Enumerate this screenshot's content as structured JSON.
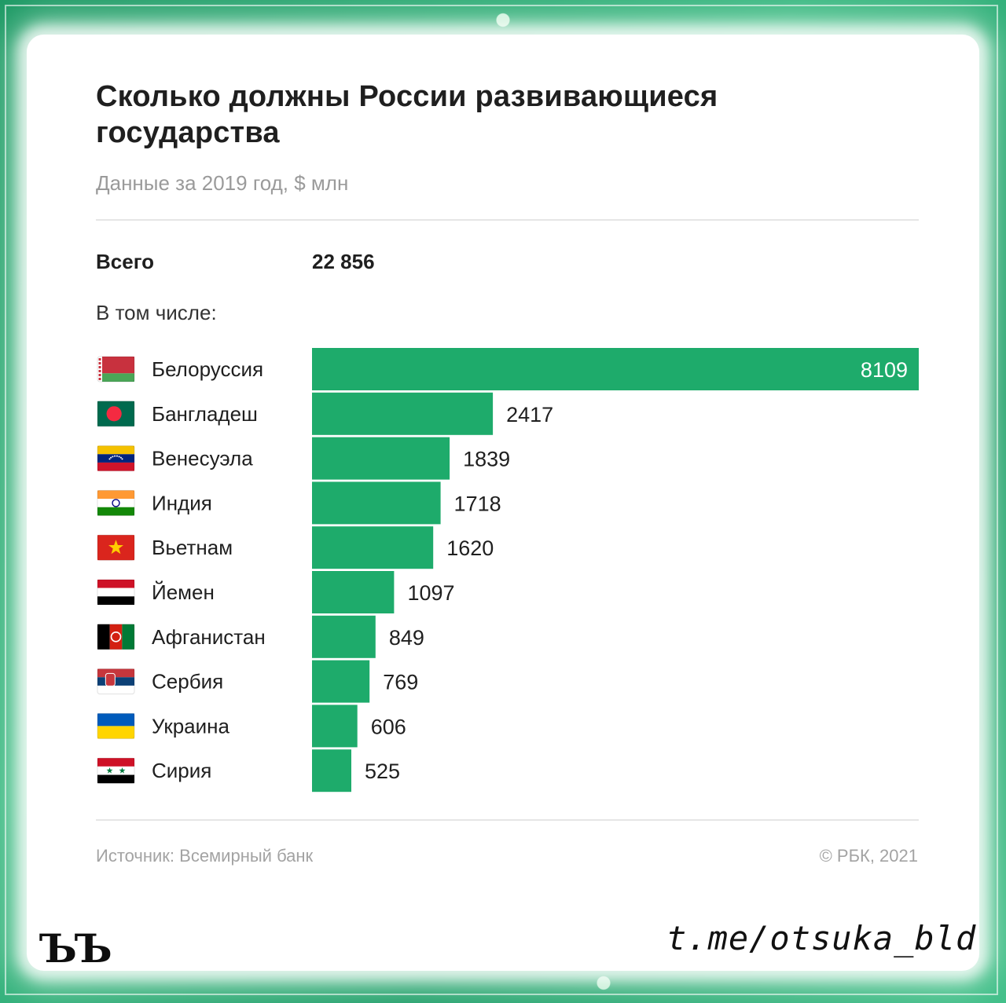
{
  "title": "Сколько должны России развивающиеся государства",
  "subtitle": "Данные за 2019 год, $ млн",
  "total": {
    "label": "Всего",
    "value": "22 856"
  },
  "including_label": "В том числе:",
  "footer": {
    "source": "Источник: Всемирный банк",
    "copyright": "© РБК, 2021"
  },
  "watermark": {
    "logo": "ЪЪ",
    "handle": "t.me/otsuka_bld"
  },
  "colors": {
    "bar": "#1eab6b",
    "bar_label_inside": "#ffffff",
    "text": "#1f1f1f",
    "muted": "#9a9a9a"
  },
  "chart_data": {
    "type": "bar",
    "orientation": "horizontal",
    "categories": [
      "Белоруссия",
      "Бангладеш",
      "Венесуэла",
      "Индия",
      "Вьетнам",
      "Йемен",
      "Афганистан",
      "Сербия",
      "Украина",
      "Сирия"
    ],
    "values": [
      8109,
      2417,
      1839,
      1718,
      1620,
      1097,
      849,
      769,
      606,
      525
    ],
    "flags": [
      "flag-belarus-icon",
      "flag-bangladesh-icon",
      "flag-venezuela-icon",
      "flag-india-icon",
      "flag-vietnam-icon",
      "flag-yemen-icon",
      "flag-afghanistan-icon",
      "flag-serbia-icon",
      "flag-ukraine-icon",
      "flag-syria-icon"
    ],
    "xlim": [
      0,
      8109
    ],
    "grid": false,
    "legend": "none"
  }
}
